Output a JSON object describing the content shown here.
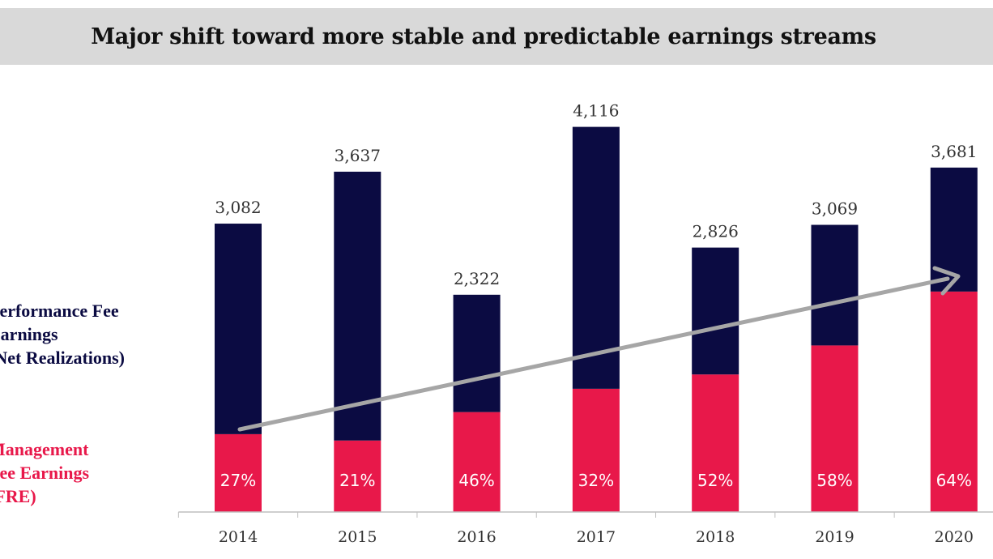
{
  "chart_data": {
    "type": "bar",
    "stacked": true,
    "title": "Major shift toward more stable and predictable earnings streams",
    "categories": [
      "2014",
      "2015",
      "2016",
      "2017",
      "2018",
      "2019",
      "2020"
    ],
    "totals": [
      3082,
      3637,
      2322,
      4116,
      2826,
      3069,
      3681
    ],
    "total_labels": [
      "3,082",
      "3,637",
      "2,322",
      "4,116",
      "2,826",
      "3,069",
      "3,681"
    ],
    "fre_share_labels": [
      "27%",
      "21%",
      "46%",
      "32%",
      "52%",
      "58%",
      "64%"
    ],
    "series": [
      {
        "name": "Management Fee Earnings (FRE)",
        "values": [
          832,
          764,
          1068,
          1317,
          1470,
          1780,
          2356
        ],
        "color": "#e8184a"
      },
      {
        "name": "Performance Fee Earnings (Net Realizations)",
        "values": [
          2250,
          2873,
          1254,
          2799,
          1356,
          1289,
          1325
        ],
        "color": "#0b0b42"
      }
    ],
    "trend_arrow": {
      "color": "#a6a6a6"
    },
    "ylim": [
      0,
      4300
    ],
    "grid": false
  },
  "legend": {
    "performance_label": "Performance Fee\nEarnings\n(Net Realizations)",
    "management_label": "Management\nFee Earnings\n(FRE)"
  }
}
